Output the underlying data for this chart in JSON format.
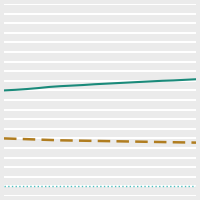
{
  "x": [
    0,
    1,
    2,
    3,
    4,
    5,
    6,
    7,
    8,
    9,
    10,
    11,
    12,
    13,
    14,
    15,
    16,
    17
  ],
  "line1_y": [
    55,
    55.3,
    55.7,
    56.2,
    56.8,
    57.2,
    57.5,
    57.8,
    58.2,
    58.5,
    58.8,
    59.1,
    59.4,
    59.7,
    60.0,
    60.2,
    60.5,
    60.8
  ],
  "line2_y": [
    30,
    29.8,
    29.6,
    29.4,
    29.2,
    29.0,
    28.9,
    28.8,
    28.7,
    28.6,
    28.5,
    28.4,
    28.3,
    28.2,
    28.1,
    28.0,
    27.9,
    27.8
  ],
  "line3_y": [
    5,
    5,
    5,
    5,
    5,
    5,
    5,
    5,
    5,
    5,
    5,
    5,
    5,
    5,
    5,
    5,
    5,
    5
  ],
  "line1_color": "#1a8a7a",
  "line2_color": "#b07d20",
  "line3_color": "#4dbfbf",
  "background_color": "#ebebeb",
  "grid_color": "#ffffff",
  "ylim": [
    0,
    100
  ],
  "xlim": [
    0,
    17
  ],
  "yticks": [
    0,
    5,
    10,
    15,
    20,
    25,
    30,
    35,
    40,
    45,
    50,
    55,
    60,
    65,
    70,
    75,
    80,
    85,
    90,
    95,
    100
  ]
}
